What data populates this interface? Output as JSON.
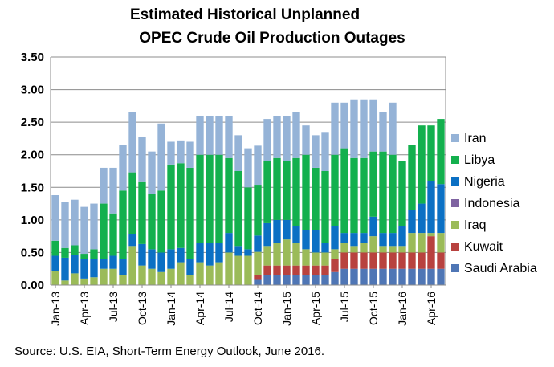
{
  "title": [
    "Estimated Historical Unplanned",
    "OPEC Crude Oil Production Outages"
  ],
  "source": "Source: U.S. EIA, Short-Term Energy Outlook, June 2016.",
  "chart_data": {
    "type": "bar",
    "stacked": true,
    "title": "Estimated Historical Unplanned OPEC Crude Oil Production Outages",
    "xlabel": "",
    "ylabel": "",
    "ylim": [
      0,
      3.5
    ],
    "yticks": [
      "0.00",
      "0.50",
      "1.00",
      "1.50",
      "2.00",
      "2.50",
      "3.00",
      "3.50"
    ],
    "grid": true,
    "legend_position": "right",
    "x_tick_labels": [
      {
        "label": "Jan-13",
        "index": 0
      },
      {
        "label": "Apr-13",
        "index": 3
      },
      {
        "label": "Jul-13",
        "index": 6
      },
      {
        "label": "Oct-13",
        "index": 9
      },
      {
        "label": "Jan-14",
        "index": 12
      },
      {
        "label": "Apr-14",
        "index": 15
      },
      {
        "label": "Jul-14",
        "index": 18
      },
      {
        "label": "Oct-14",
        "index": 21
      },
      {
        "label": "Jan-15",
        "index": 24
      },
      {
        "label": "Apr-15",
        "index": 27
      },
      {
        "label": "Jul-15",
        "index": 30
      },
      {
        "label": "Oct-15",
        "index": 33
      },
      {
        "label": "Jan-16",
        "index": 36
      },
      {
        "label": "Apr-16",
        "index": 39
      }
    ],
    "categories": [
      "Jan-13",
      "Feb-13",
      "Mar-13",
      "Apr-13",
      "May-13",
      "Jun-13",
      "Jul-13",
      "Aug-13",
      "Sep-13",
      "Oct-13",
      "Nov-13",
      "Dec-13",
      "Jan-14",
      "Feb-14",
      "Mar-14",
      "Apr-14",
      "May-14",
      "Jun-14",
      "Jul-14",
      "Aug-14",
      "Sep-14",
      "Oct-14",
      "Nov-14",
      "Dec-14",
      "Jan-15",
      "Feb-15",
      "Mar-15",
      "Apr-15",
      "May-15",
      "Jun-15",
      "Jul-15",
      "Aug-15",
      "Sep-15",
      "Oct-15",
      "Nov-15",
      "Dec-15",
      "Jan-16",
      "Feb-16",
      "Mar-16",
      "Apr-16",
      "May-16"
    ],
    "series": [
      {
        "name": "Saudi Arabia",
        "color": "#4f76b5",
        "values": [
          0,
          0,
          0,
          0,
          0,
          0,
          0,
          0,
          0,
          0,
          0,
          0,
          0,
          0,
          0,
          0,
          0,
          0,
          0,
          0,
          0,
          0.08,
          0.15,
          0.15,
          0.15,
          0.15,
          0.15,
          0.15,
          0.15,
          0.2,
          0.25,
          0.25,
          0.25,
          0.25,
          0.25,
          0.25,
          0.25,
          0.25,
          0.25,
          0.25,
          0.25
        ]
      },
      {
        "name": "Kuwait",
        "color": "#b8423f",
        "values": [
          0,
          0,
          0,
          0,
          0,
          0,
          0,
          0,
          0,
          0,
          0,
          0,
          0,
          0,
          0,
          0,
          0,
          0,
          0,
          0,
          0,
          0.08,
          0.15,
          0.15,
          0.15,
          0.15,
          0.15,
          0.15,
          0.15,
          0.2,
          0.25,
          0.25,
          0.25,
          0.25,
          0.25,
          0.25,
          0.25,
          0.25,
          0.25,
          0.5,
          0.25
        ]
      },
      {
        "name": "Iraq",
        "color": "#9bbb59",
        "values": [
          0.22,
          0.07,
          0.18,
          0.1,
          0.12,
          0.25,
          0.25,
          0.15,
          0.6,
          0.3,
          0.25,
          0.2,
          0.25,
          0.35,
          0.15,
          0.35,
          0.3,
          0.35,
          0.5,
          0.45,
          0.45,
          0.35,
          0.3,
          0.35,
          0.4,
          0.35,
          0.25,
          0.2,
          0.2,
          0.15,
          0.15,
          0.1,
          0.15,
          0.25,
          0.1,
          0.1,
          0.1,
          0.3,
          0.3,
          0.05,
          0.3
        ]
      },
      {
        "name": "Indonesia",
        "color": "#7f63a1",
        "values": [
          0,
          0,
          0,
          0,
          0,
          0,
          0,
          0,
          0,
          0,
          0,
          0,
          0,
          0,
          0,
          0,
          0,
          0,
          0,
          0,
          0,
          0,
          0,
          0,
          0,
          0,
          0,
          0,
          0,
          0,
          0,
          0,
          0,
          0,
          0,
          0,
          0,
          0,
          0,
          0,
          0
        ]
      },
      {
        "name": "Nigeria",
        "color": "#0b70c4",
        "values": [
          0.23,
          0.35,
          0.28,
          0.3,
          0.28,
          0.15,
          0.2,
          0.25,
          0.18,
          0.33,
          0.3,
          0.3,
          0.3,
          0.22,
          0.25,
          0.3,
          0.35,
          0.3,
          0.3,
          0.15,
          0.1,
          0.25,
          0.35,
          0.35,
          0.3,
          0.25,
          0.3,
          0.35,
          0.15,
          0.35,
          0.15,
          0.2,
          0.15,
          0.3,
          0.2,
          0.2,
          0.3,
          0.35,
          0.45,
          0.8,
          0.75
        ]
      },
      {
        "name": "Libya",
        "color": "#13b04e",
        "values": [
          0.23,
          0.15,
          0.15,
          0.08,
          0.15,
          0.85,
          0.65,
          1.05,
          0.95,
          0.95,
          0.85,
          0.95,
          1.3,
          1.3,
          1.4,
          1.35,
          1.35,
          1.35,
          1.15,
          1.15,
          0.95,
          0.78,
          0.95,
          0.95,
          0.9,
          1.05,
          1.15,
          0.95,
          1.1,
          1.1,
          1.3,
          1.15,
          1.15,
          1.0,
          1.25,
          1.2,
          1.0,
          1.0,
          1.2,
          0.85,
          1.0
        ]
      },
      {
        "name": "Iran",
        "color": "#95b3d7",
        "values": [
          0.7,
          0.7,
          0.7,
          0.72,
          0.7,
          0.55,
          0.7,
          0.7,
          0.92,
          0.7,
          0.65,
          1.03,
          0.35,
          0.35,
          0.4,
          0.6,
          0.6,
          0.6,
          0.65,
          0.55,
          0.6,
          0.6,
          0.65,
          0.65,
          0.7,
          0.7,
          0.45,
          0.5,
          0.6,
          0.8,
          0.7,
          0.9,
          0.9,
          0.8,
          0.6,
          0.8,
          0,
          0,
          0,
          0,
          0
        ]
      }
    ]
  }
}
